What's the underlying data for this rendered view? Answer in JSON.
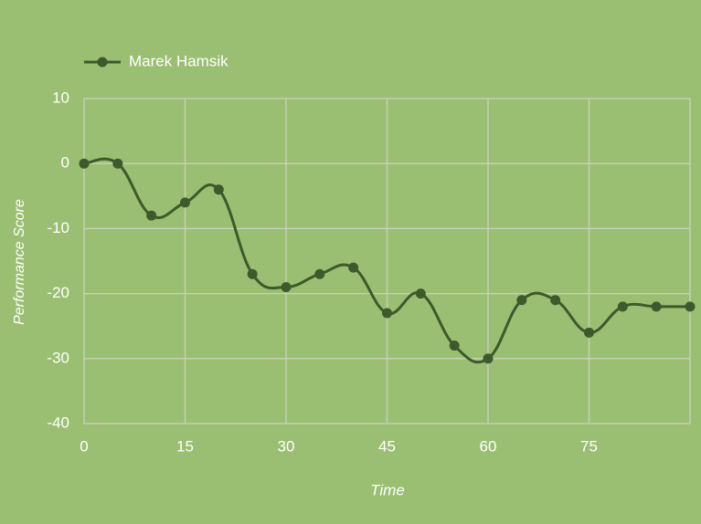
{
  "chart_data": {
    "type": "line",
    "x_label": "Time",
    "y_label": "Performance Score",
    "x": [
      0,
      5,
      10,
      15,
      20,
      25,
      30,
      35,
      40,
      45,
      50,
      55,
      60,
      65,
      70,
      75,
      80,
      85,
      90
    ],
    "series": [
      {
        "name": "Marek Hamsik",
        "color": "#3c5a2b",
        "values": [
          0,
          0,
          -8,
          -6,
          -4,
          -17,
          -19,
          -17,
          -16,
          -23,
          -20,
          -28,
          -30,
          -21,
          -21,
          -26,
          -22,
          -22,
          -22
        ]
      }
    ],
    "xlim": [
      0,
      90
    ],
    "xticks": [
      0,
      15,
      30,
      45,
      60,
      75
    ],
    "ylim": [
      -40,
      10
    ],
    "yticks": [
      10,
      0,
      -10,
      -20,
      -30,
      -40
    ],
    "grid": true,
    "legend": "top-left"
  }
}
